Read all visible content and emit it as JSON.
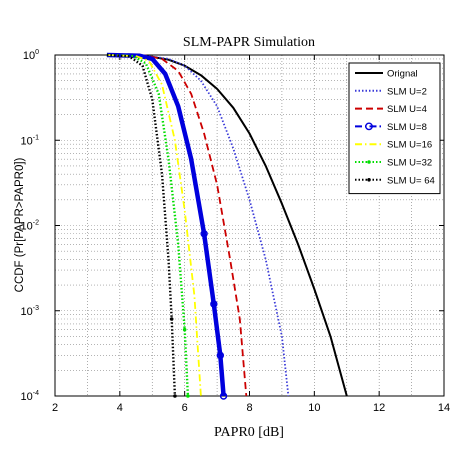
{
  "chart_data": {
    "type": "line",
    "title": "SLM-PAPR Simulation",
    "xlabel": "PAPR0 [dB]",
    "ylabel": "CCDF (Pr[PAPR>PAPR0])",
    "xlim": [
      2,
      14
    ],
    "ylim": [
      0.0001,
      1
    ],
    "yscale": "log",
    "grid": "dotted",
    "legend_position": "top-right",
    "x_ticks": [
      "2",
      "4",
      "6",
      "8",
      "10",
      "12",
      "14"
    ],
    "y_ticks": [
      {
        "base": "10",
        "exp": "0"
      },
      {
        "base": "10",
        "exp": "-1"
      },
      {
        "base": "10",
        "exp": "-2"
      },
      {
        "base": "10",
        "exp": "-3"
      },
      {
        "base": "10",
        "exp": "-4"
      }
    ],
    "series": [
      {
        "name": "Orignal",
        "color": "#000000",
        "style": "solid",
        "marker": "none",
        "x": [
          3.6,
          4.5,
          5.0,
          5.5,
          6.0,
          6.5,
          7.0,
          7.5,
          8.0,
          8.5,
          9.0,
          9.5,
          10.0,
          10.5,
          11.0
        ],
        "y": [
          1,
          0.98,
          0.95,
          0.88,
          0.75,
          0.58,
          0.4,
          0.24,
          0.12,
          0.05,
          0.018,
          0.006,
          0.0018,
          0.0005,
          0.0001
        ]
      },
      {
        "name": "SLM U=2",
        "color": "#3a3ad8",
        "style": "dotted",
        "marker": "none",
        "x": [
          3.6,
          4.8,
          5.5,
          6.0,
          6.5,
          7.0,
          7.5,
          8.0,
          8.5,
          9.0,
          9.2
        ],
        "y": [
          1,
          0.98,
          0.9,
          0.75,
          0.5,
          0.25,
          0.08,
          0.02,
          0.004,
          0.0005,
          0.0001
        ]
      },
      {
        "name": "SLM U=4",
        "color": "#cc0000",
        "style": "dashed",
        "marker": "none",
        "x": [
          3.6,
          4.8,
          5.3,
          5.8,
          6.2,
          6.6,
          7.0,
          7.4,
          7.7,
          7.9
        ],
        "y": [
          1,
          0.98,
          0.9,
          0.65,
          0.35,
          0.12,
          0.03,
          0.004,
          0.0008,
          0.0001
        ]
      },
      {
        "name": "SLM U=8",
        "color": "#0000dd",
        "style": "dashdot",
        "marker": "circle",
        "x": [
          3.6,
          4.6,
          5.0,
          5.4,
          5.8,
          6.2,
          6.6,
          6.9,
          7.1,
          7.2
        ],
        "y": [
          1,
          0.98,
          0.9,
          0.6,
          0.25,
          0.06,
          0.008,
          0.0012,
          0.0003,
          0.0001
        ]
      },
      {
        "name": "SLM U=16",
        "color": "#ffff00",
        "style": "dashdot",
        "marker": "none",
        "x": [
          3.6,
          4.5,
          4.9,
          5.3,
          5.7,
          6.0,
          6.3,
          6.5
        ],
        "y": [
          1,
          0.97,
          0.85,
          0.45,
          0.1,
          0.015,
          0.0015,
          0.0001
        ]
      },
      {
        "name": "SLM U=32",
        "color": "#00dd00",
        "style": "dotted",
        "marker": "dot",
        "x": [
          3.6,
          4.4,
          4.8,
          5.2,
          5.5,
          5.8,
          6.0,
          6.1
        ],
        "y": [
          1,
          0.97,
          0.8,
          0.35,
          0.06,
          0.006,
          0.0006,
          0.0001
        ]
      },
      {
        "name": "SLM U= 64",
        "color": "#000000",
        "style": "dotted",
        "marker": "dot",
        "x": [
          3.6,
          4.3,
          4.7,
          5.0,
          5.3,
          5.5,
          5.6,
          5.7
        ],
        "y": [
          1,
          0.96,
          0.75,
          0.3,
          0.04,
          0.004,
          0.0008,
          0.0001
        ]
      }
    ]
  }
}
